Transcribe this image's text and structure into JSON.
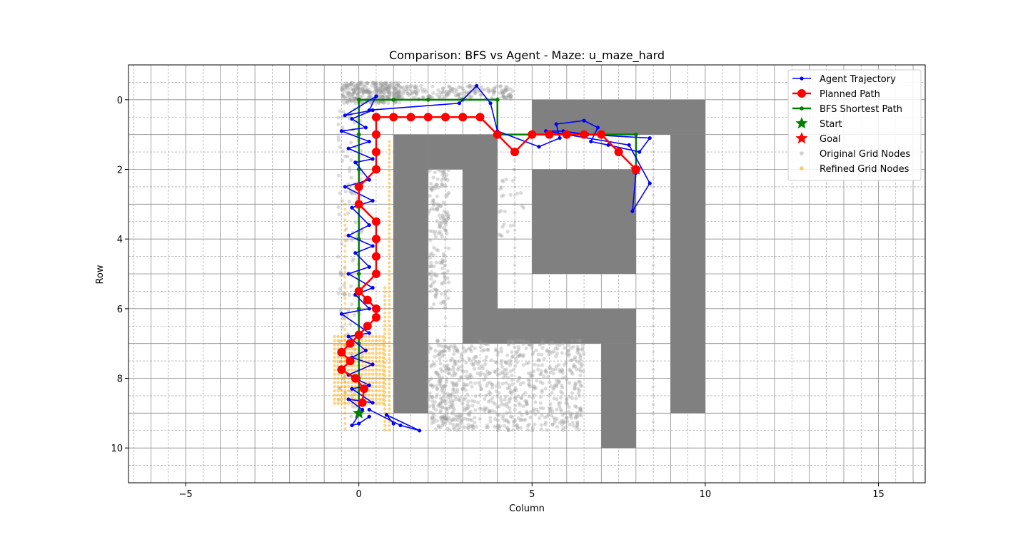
{
  "chart_data": {
    "type": "scatter",
    "title": "Comparison: BFS vs Agent - Maze: u_maze_hard",
    "xlabel": "Column",
    "ylabel": "Row",
    "xlim": [
      -6.65,
      16.35
    ],
    "ylim": [
      11.0,
      -1.0
    ],
    "y_inverted": true,
    "xticks": [
      -5,
      0,
      5,
      10,
      15
    ],
    "yticks": [
      0,
      2,
      4,
      6,
      8,
      10
    ],
    "grid": true,
    "legend_position": "top-right",
    "colors": {
      "agent": "#0000ff",
      "planned": "#ff0000",
      "bfs": "#008000",
      "start": "#008000",
      "goal": "#ff0000",
      "original_nodes": "#999999",
      "refined_nodes": "#ffa500",
      "walls": "#808080"
    },
    "legend": [
      {
        "key": "agent",
        "label": "Agent Trajectory"
      },
      {
        "key": "planned",
        "label": "Planned Path"
      },
      {
        "key": "bfs",
        "label": "BFS Shortest Path"
      },
      {
        "key": "start",
        "label": "Start"
      },
      {
        "key": "goal",
        "label": "Goal"
      },
      {
        "key": "original_nodes",
        "label": "Original Grid Nodes"
      },
      {
        "key": "refined_nodes",
        "label": "Refined Grid Nodes"
      }
    ],
    "walls": [
      [
        1,
        1,
        2,
        9
      ],
      [
        2,
        1,
        4,
        2
      ],
      [
        3,
        2,
        4,
        7
      ],
      [
        4,
        6,
        8,
        7
      ],
      [
        7,
        7,
        8,
        10
      ],
      [
        5,
        0,
        10,
        1
      ],
      [
        9,
        1,
        10,
        9
      ],
      [
        5,
        2,
        8,
        5
      ]
    ],
    "bfs_path": [
      [
        0,
        9
      ],
      [
        0,
        8
      ],
      [
        0,
        7
      ],
      [
        0,
        6
      ],
      [
        0,
        5
      ],
      [
        0,
        4
      ],
      [
        0,
        3
      ],
      [
        0,
        2
      ],
      [
        0,
        1
      ],
      [
        0,
        0
      ],
      [
        1,
        0
      ],
      [
        2,
        0
      ],
      [
        3,
        0
      ],
      [
        4,
        0
      ],
      [
        4,
        1
      ],
      [
        5,
        1
      ],
      [
        6,
        1
      ],
      [
        7,
        1
      ],
      [
        8,
        1
      ],
      [
        8,
        2
      ]
    ],
    "planned_path": [
      [
        0.1,
        8.7
      ],
      [
        0.15,
        8.3
      ],
      [
        -0.1,
        8.0
      ],
      [
        -0.5,
        7.75
      ],
      [
        -0.25,
        7.5
      ],
      [
        -0.5,
        7.25
      ],
      [
        -0.25,
        7.0
      ],
      [
        0,
        6.75
      ],
      [
        0.25,
        6.5
      ],
      [
        0.5,
        6.25
      ],
      [
        0.5,
        6.0
      ],
      [
        0.25,
        5.75
      ],
      [
        0,
        5.5
      ],
      [
        0.5,
        5.0
      ],
      [
        0.5,
        4.5
      ],
      [
        0.5,
        4.0
      ],
      [
        0.5,
        3.5
      ],
      [
        0,
        3.0
      ],
      [
        0,
        2.5
      ],
      [
        0.5,
        2.0
      ],
      [
        0.5,
        1.5
      ],
      [
        0.5,
        1.0
      ],
      [
        0.5,
        0.5
      ],
      [
        1,
        0.5
      ],
      [
        1.5,
        0.5
      ],
      [
        2,
        0.5
      ],
      [
        2.5,
        0.5
      ],
      [
        3,
        0.5
      ],
      [
        3.5,
        0.5
      ],
      [
        4,
        1
      ],
      [
        4.5,
        1.5
      ],
      [
        5,
        1
      ],
      [
        5.5,
        1
      ],
      [
        6,
        1
      ],
      [
        6.5,
        1
      ],
      [
        7,
        1
      ],
      [
        7.5,
        1.5
      ],
      [
        8,
        2
      ]
    ],
    "agent_trajectory": [
      [
        0.3,
        9.1
      ],
      [
        0.0,
        9.3
      ],
      [
        -0.2,
        9.35
      ],
      [
        0.1,
        8.9
      ],
      [
        -0.3,
        8.6
      ],
      [
        0.4,
        8.7
      ],
      [
        -0.2,
        8.3
      ],
      [
        0.3,
        8.2
      ],
      [
        -0.3,
        7.9
      ],
      [
        0.4,
        7.6
      ],
      [
        -0.2,
        7.4
      ],
      [
        0.2,
        7.2
      ],
      [
        -0.3,
        6.8
      ],
      [
        0.3,
        6.7
      ],
      [
        -0.5,
        6.15
      ],
      [
        0.3,
        6.0
      ],
      [
        -0.1,
        5.6
      ],
      [
        0.4,
        5.4
      ],
      [
        -0.3,
        5.0
      ],
      [
        0.3,
        4.8
      ],
      [
        -0.1,
        4.4
      ],
      [
        0.4,
        4.2
      ],
      [
        -0.3,
        3.9
      ],
      [
        0.3,
        3.6
      ],
      [
        -0.2,
        3.1
      ],
      [
        0.4,
        2.9
      ],
      [
        -0.4,
        2.5
      ],
      [
        0.3,
        2.3
      ],
      [
        -0.1,
        1.8
      ],
      [
        0.4,
        1.7
      ],
      [
        -0.3,
        1.4
      ],
      [
        0.3,
        1.2
      ],
      [
        -0.5,
        0.9
      ],
      [
        0.2,
        0.8
      ],
      [
        -0.2,
        0.55
      ],
      [
        0.4,
        0.3
      ],
      [
        -0.4,
        0.45
      ],
      [
        0.5,
        -0.1
      ],
      [
        0.3,
        0.3
      ],
      [
        2.9,
        0.1
      ],
      [
        3.4,
        -0.4
      ],
      [
        3.8,
        0.1
      ],
      [
        4.0,
        0.9
      ],
      [
        5.2,
        1.35
      ],
      [
        5.8,
        1.1
      ],
      [
        5.7,
        0.7
      ],
      [
        6.5,
        0.6
      ],
      [
        6.9,
        0.8
      ],
      [
        6.7,
        1.2
      ],
      [
        7.2,
        1.3
      ],
      [
        8.1,
        1.5
      ],
      [
        8.4,
        1.1
      ],
      [
        6.6,
        1.0
      ],
      [
        5.9,
        0.9
      ],
      [
        5.4,
        0.9
      ],
      [
        7.8,
        1.3
      ],
      [
        8.4,
        2.4
      ],
      [
        7.9,
        3.2
      ],
      [
        8.0,
        2.1
      ]
    ],
    "agent_tail": [
      [
        0.3,
        8.9
      ],
      [
        1.2,
        9.35
      ],
      [
        1.75,
        9.5
      ],
      [
        0.8,
        9.05
      ],
      [
        1.0,
        9.3
      ]
    ],
    "start": [
      0,
      9
    ],
    "goal": [
      8,
      2
    ]
  }
}
